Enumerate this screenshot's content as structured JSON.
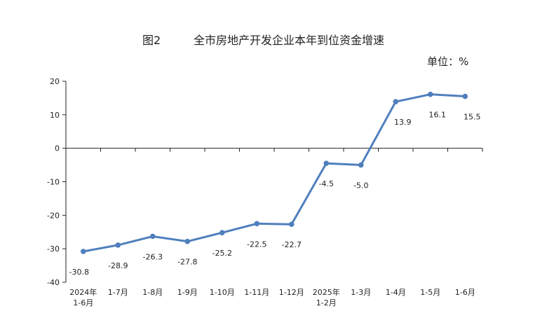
{
  "chart_data": {
    "type": "line",
    "figure_label": "图2",
    "title": "全市房地产开发企业本年到位资金增速",
    "unit_label": "单位：%",
    "categories": [
      "2024年\n1-6月",
      "1-7月",
      "1-8月",
      "1-9月",
      "1-10月",
      "1-11月",
      "1-12月",
      "2025年\n1-2月",
      "1-3月",
      "1-4月",
      "1-5月",
      "1-6月"
    ],
    "series": [
      {
        "values": [
          -30.8,
          -28.9,
          -26.3,
          -27.8,
          -25.2,
          -22.5,
          -22.7,
          -4.5,
          -5.0,
          13.9,
          16.1,
          15.5
        ]
      }
    ],
    "ylim": [
      -40,
      20
    ],
    "yticks": [
      20,
      10,
      0,
      -10,
      -20,
      -30,
      -40
    ],
    "grid": false,
    "line_color": "#4f7fbd"
  }
}
